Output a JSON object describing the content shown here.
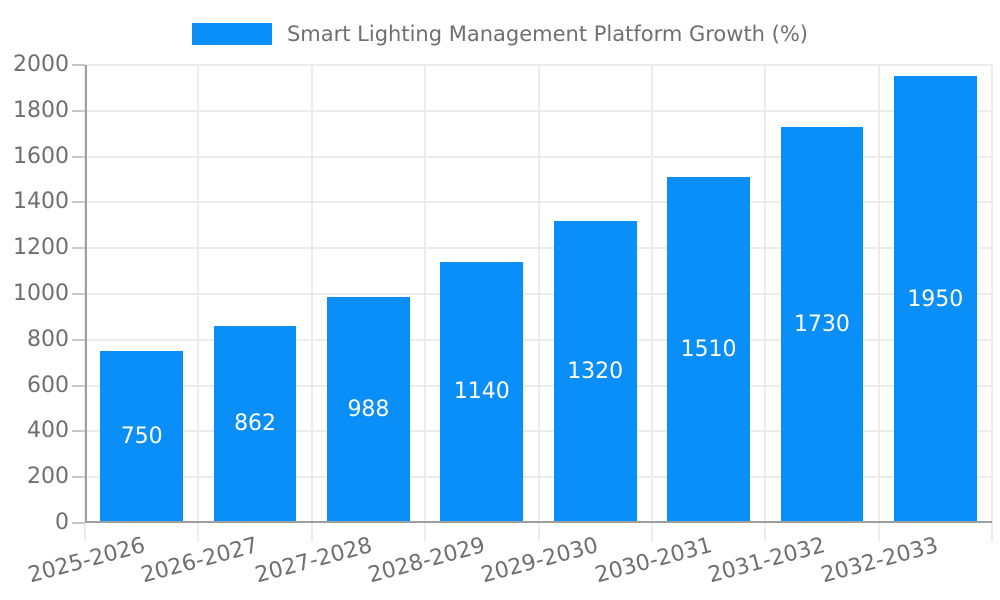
{
  "chart_data": {
    "type": "bar",
    "title": "Smart Lighting Management Platform Growth (%)",
    "categories": [
      "2025-2026",
      "2026-2027",
      "2027-2028",
      "2028-2029",
      "2029-2030",
      "2030-2031",
      "2031-2032",
      "2032-2033"
    ],
    "values": [
      750,
      862,
      988,
      1140,
      1320,
      1510,
      1730,
      1950
    ],
    "value_labels": [
      "750",
      "862",
      "988",
      "1140",
      "1320",
      "1510",
      "1730",
      "1950"
    ],
    "xlabel": "",
    "ylabel": "",
    "ylim": [
      0,
      2000
    ],
    "ytick_step": 200,
    "yticks": [
      0,
      200,
      400,
      600,
      800,
      1000,
      1200,
      1400,
      1600,
      1800,
      2000
    ],
    "grid": true,
    "legend_position": "top-center",
    "legend_entries": [
      "Smart Lighting Management Platform Growth (%)"
    ]
  },
  "colors": {
    "bar": "#0a8ff8",
    "grid": "#ececec",
    "axis": "#9e9e9e",
    "text": "#6f6f6f",
    "value_label": "#ffffff",
    "background": "#ffffff"
  }
}
